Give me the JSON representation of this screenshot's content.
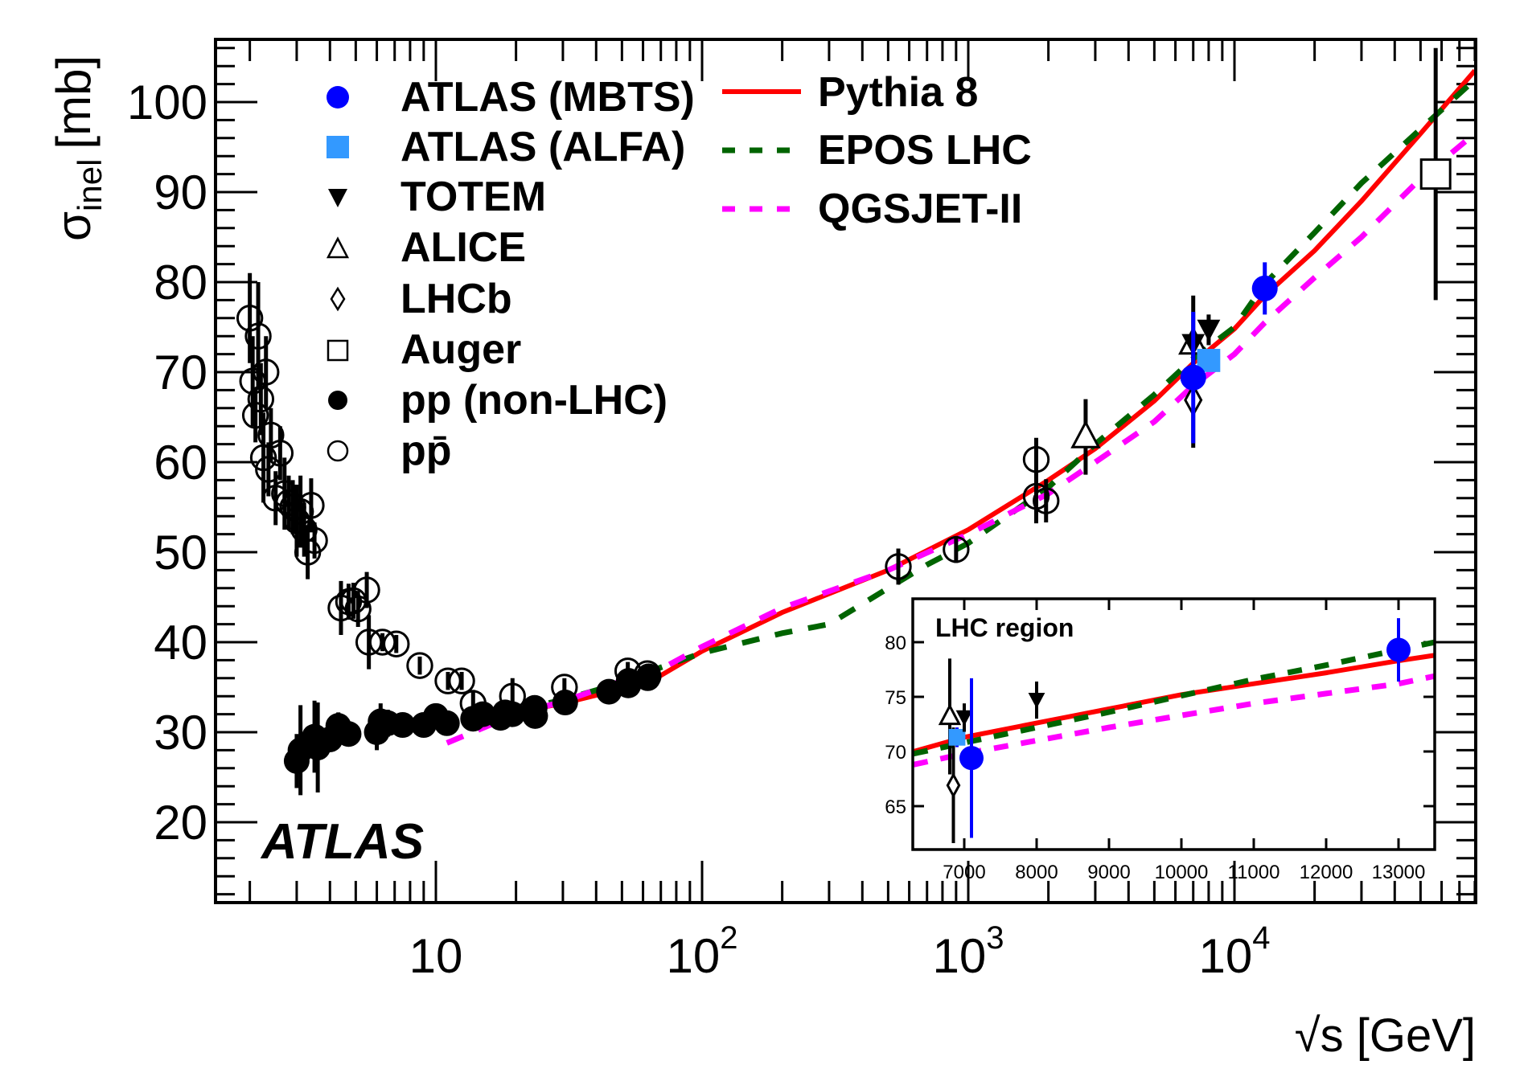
{
  "chart_data": {
    "type": "scatter",
    "title": "",
    "xlabel": "√s [GeV]",
    "ylabel_main": "σ",
    "ylabel_sub": "inel",
    "ylabel_unit": "[mb]",
    "xscale": "log",
    "xlim": [
      1.5,
      80000
    ],
    "ylim": [
      11,
      107
    ],
    "xticks": [
      {
        "v": 10,
        "base": "10",
        "exp": ""
      },
      {
        "v": 100,
        "base": "10",
        "exp": "2"
      },
      {
        "v": 1000,
        "base": "10",
        "exp": "3"
      },
      {
        "v": 10000,
        "base": "10",
        "exp": "4"
      }
    ],
    "yticks": [
      20,
      30,
      40,
      50,
      60,
      70,
      80,
      90,
      100
    ],
    "watermark": "ATLAS",
    "legend_placement": "top-left",
    "series": [
      {
        "name": "ATLAS (MBTS)",
        "marker": "filled-circle",
        "color": "#0000ff",
        "points": [
          [
            7000,
            69.4,
            7.3
          ],
          [
            13000,
            79.3,
            2.9
          ]
        ]
      },
      {
        "name": "ATLAS (ALFA)",
        "marker": "filled-square",
        "color": "#3399ff",
        "points": [
          [
            8000,
            71.3,
            0.9
          ]
        ]
      },
      {
        "name": "TOTEM",
        "marker": "filled-triangle-down",
        "color": "#000000",
        "points": [
          [
            7000,
            73.1,
            1.3
          ],
          [
            8000,
            74.7,
            1.7
          ]
        ]
      },
      {
        "name": "ALICE",
        "marker": "open-triangle-up",
        "color": "#000000",
        "points": [
          [
            2760,
            62.8,
            4.2
          ],
          [
            7000,
            73.2,
            5.3
          ]
        ]
      },
      {
        "name": "LHCb",
        "marker": "open-diamond",
        "color": "#000000",
        "points": [
          [
            7000,
            66.9,
            5.3
          ]
        ]
      },
      {
        "name": "Auger",
        "marker": "open-square",
        "color": "#000000",
        "points": [
          [
            57000,
            92,
            14
          ]
        ]
      },
      {
        "name": "pp (non-LHC)",
        "marker": "filled-circle",
        "color": "#000000",
        "points": [
          [
            3.0,
            26.8,
            3
          ],
          [
            3.1,
            28.0,
            5
          ],
          [
            3.5,
            29.5,
            4
          ],
          [
            3.6,
            28.3,
            5
          ],
          [
            4.0,
            29.2,
            1
          ],
          [
            4.3,
            30.7,
            1.5
          ],
          [
            4.7,
            29.8,
            1
          ],
          [
            6.0,
            30.0,
            2
          ],
          [
            6.2,
            31.2,
            2
          ],
          [
            6.6,
            31.0,
            1.5
          ],
          [
            7.5,
            30.8,
            1
          ],
          [
            9.0,
            30.8,
            1
          ],
          [
            10,
            31.8,
            1
          ],
          [
            11,
            31.0,
            1
          ],
          [
            13.8,
            31.5,
            1
          ],
          [
            15,
            32.0,
            1
          ],
          [
            17.5,
            31.6,
            1
          ],
          [
            18.2,
            32.2,
            1
          ],
          [
            19.4,
            32.0,
            1
          ],
          [
            23.5,
            32.7,
            1
          ],
          [
            23.6,
            31.8,
            1
          ],
          [
            30.6,
            33.3,
            1
          ],
          [
            44.7,
            34.5,
            1
          ],
          [
            52.8,
            35.2,
            1
          ],
          [
            53,
            35.7,
            1
          ],
          [
            62.5,
            36.0,
            1
          ],
          [
            63,
            36.2,
            1
          ]
        ]
      },
      {
        "name": "pp̄",
        "marker": "open-circle",
        "color": "#000000",
        "points": [
          [
            2.0,
            76.0,
            5
          ],
          [
            2.05,
            69.0,
            5
          ],
          [
            2.1,
            65.2,
            3
          ],
          [
            2.15,
            74.0,
            6
          ],
          [
            2.2,
            67.0,
            4
          ],
          [
            2.25,
            60.5,
            5
          ],
          [
            2.3,
            70.0,
            4
          ],
          [
            2.35,
            59.2,
            3
          ],
          [
            2.4,
            63.0,
            3
          ],
          [
            2.5,
            56.0,
            3
          ],
          [
            2.6,
            61.0,
            3
          ],
          [
            2.7,
            56.5,
            4
          ],
          [
            2.8,
            55.5,
            3
          ],
          [
            2.9,
            55.0,
            3
          ],
          [
            3.0,
            53.5,
            4
          ],
          [
            3.1,
            54.5,
            4
          ],
          [
            3.2,
            52.5,
            3
          ],
          [
            3.3,
            50.0,
            3
          ],
          [
            3.4,
            55.2,
            3
          ],
          [
            3.5,
            51.3,
            2
          ],
          [
            4.4,
            43.8,
            3
          ],
          [
            4.7,
            44.5,
            2
          ],
          [
            4.9,
            44.6,
            2
          ],
          [
            5.1,
            43.7,
            2
          ],
          [
            5.5,
            45.8,
            2
          ],
          [
            5.6,
            40.0,
            3
          ],
          [
            6.3,
            40.0,
            1
          ],
          [
            7.1,
            39.8,
            1
          ],
          [
            8.7,
            37.4,
            1
          ],
          [
            11.1,
            35.7,
            1
          ],
          [
            12.5,
            35.7,
            1
          ],
          [
            13.8,
            33.2,
            1.5
          ],
          [
            19.4,
            34.0,
            2
          ],
          [
            30.4,
            35.0,
            1
          ],
          [
            52.6,
            36.8,
            1
          ],
          [
            62.3,
            36.5,
            1
          ],
          [
            546,
            48.4,
            2
          ],
          [
            900,
            50.3,
            1.5
          ],
          [
            1800,
            60.3,
            2.4
          ],
          [
            1800,
            56.2,
            3.0
          ],
          [
            1960,
            55.7,
            2.4
          ]
        ]
      }
    ],
    "models": [
      {
        "name": "Pythia 8",
        "style": "solid",
        "color": "#ff0000",
        "points": [
          [
            20,
            32.2
          ],
          [
            30,
            33.2
          ],
          [
            50,
            34.8
          ],
          [
            70,
            36.3
          ],
          [
            100,
            39.0
          ],
          [
            200,
            43.3
          ],
          [
            500,
            48.0
          ],
          [
            1000,
            52.5
          ],
          [
            2000,
            58.0
          ],
          [
            3000,
            61.5
          ],
          [
            5000,
            66.8
          ],
          [
            7000,
            71.0
          ],
          [
            10000,
            74.8
          ],
          [
            13000,
            78.5
          ],
          [
            20000,
            83.5
          ],
          [
            30000,
            89.0
          ],
          [
            50000,
            96.5
          ],
          [
            80000,
            103.5
          ]
        ]
      },
      {
        "name": "EPOS LHC",
        "style": "dashed",
        "color": "#006400",
        "points": [
          [
            20,
            32.4
          ],
          [
            30,
            33.6
          ],
          [
            50,
            35.5
          ],
          [
            70,
            37.2
          ],
          [
            100,
            38.8
          ],
          [
            200,
            41.0
          ],
          [
            300,
            42.0
          ],
          [
            500,
            46.0
          ],
          [
            700,
            48.6
          ],
          [
            1000,
            51.0
          ],
          [
            2000,
            57.2
          ],
          [
            3000,
            62.0
          ],
          [
            5000,
            67.5
          ],
          [
            7000,
            71.5
          ],
          [
            10000,
            75.0
          ],
          [
            13000,
            79.8
          ],
          [
            20000,
            85.5
          ],
          [
            30000,
            91.0
          ],
          [
            50000,
            97.0
          ],
          [
            80000,
            102.5
          ]
        ]
      },
      {
        "name": "QGSJET-II",
        "style": "dashed",
        "color": "#ff00ff",
        "points": [
          [
            11,
            28.8
          ],
          [
            20,
            32.0
          ],
          [
            30,
            33.4
          ],
          [
            50,
            35.7
          ],
          [
            70,
            37.0
          ],
          [
            100,
            39.5
          ],
          [
            200,
            43.8
          ],
          [
            500,
            48.0
          ],
          [
            1000,
            52.0
          ],
          [
            2000,
            56.5
          ],
          [
            3000,
            60.0
          ],
          [
            5000,
            64.5
          ],
          [
            7000,
            68.5
          ],
          [
            10000,
            72.0
          ],
          [
            13000,
            75.5
          ],
          [
            20000,
            80.5
          ],
          [
            30000,
            85.0
          ],
          [
            50000,
            91.5
          ],
          [
            80000,
            96.5
          ]
        ]
      }
    ],
    "inset": {
      "title": "LHC region",
      "xscale": "linear",
      "xlim": [
        6300,
        13500
      ],
      "ylim": [
        62.5,
        83.5
      ],
      "xticks": [
        7000,
        8000,
        9000,
        10000,
        11000,
        12000,
        13000
      ],
      "yticks": [
        65,
        70,
        75,
        80
      ],
      "points": [
        {
          "series": "ALICE",
          "marker": "open-triangle-up",
          "x": 6800,
          "y": 73.2,
          "err": 5.3
        },
        {
          "series": "LHCb",
          "marker": "open-diamond",
          "x": 6850,
          "y": 66.9,
          "err": 5.3
        },
        {
          "series": "ATLAS (ALFA)",
          "marker": "filled-square",
          "x": 6900,
          "y": 71.3,
          "err": 0.9
        },
        {
          "series": "TOTEM",
          "marker": "filled-triangle-down",
          "x": 7000,
          "y": 73.1,
          "err": 1.3
        },
        {
          "series": "ATLAS (MBTS)",
          "marker": "filled-circle",
          "x": 7100,
          "y": 69.4,
          "err": 7.3
        },
        {
          "series": "TOTEM",
          "marker": "filled-triangle-down",
          "x": 8000,
          "y": 74.7,
          "err": 1.7
        },
        {
          "series": "ATLAS (MBTS)",
          "marker": "filled-circle",
          "x": 13000,
          "y": 79.3,
          "err": 2.9
        }
      ],
      "models": [
        {
          "name": "Pythia 8",
          "points": [
            [
              6300,
              70.0
            ],
            [
              7000,
              71.3
            ],
            [
              8000,
              72.6
            ],
            [
              9000,
              73.9
            ],
            [
              10000,
              75.2
            ],
            [
              11000,
              76.2
            ],
            [
              12000,
              77.2
            ],
            [
              13000,
              78.3
            ],
            [
              13500,
              78.8
            ]
          ]
        },
        {
          "name": "EPOS LHC",
          "points": [
            [
              6300,
              69.8
            ],
            [
              7000,
              70.8
            ],
            [
              8000,
              72.2
            ],
            [
              9000,
              73.6
            ],
            [
              10000,
              75.1
            ],
            [
              11000,
              76.6
            ],
            [
              12000,
              77.9
            ],
            [
              13000,
              79.3
            ],
            [
              13500,
              80.0
            ]
          ]
        },
        {
          "name": "QGSJET-II",
          "points": [
            [
              6300,
              68.8
            ],
            [
              7000,
              69.8
            ],
            [
              8000,
              71.0
            ],
            [
              9000,
              72.2
            ],
            [
              10000,
              73.3
            ],
            [
              11000,
              74.4
            ],
            [
              12000,
              75.3
            ],
            [
              13000,
              76.2
            ],
            [
              13500,
              76.9
            ]
          ]
        }
      ]
    }
  }
}
